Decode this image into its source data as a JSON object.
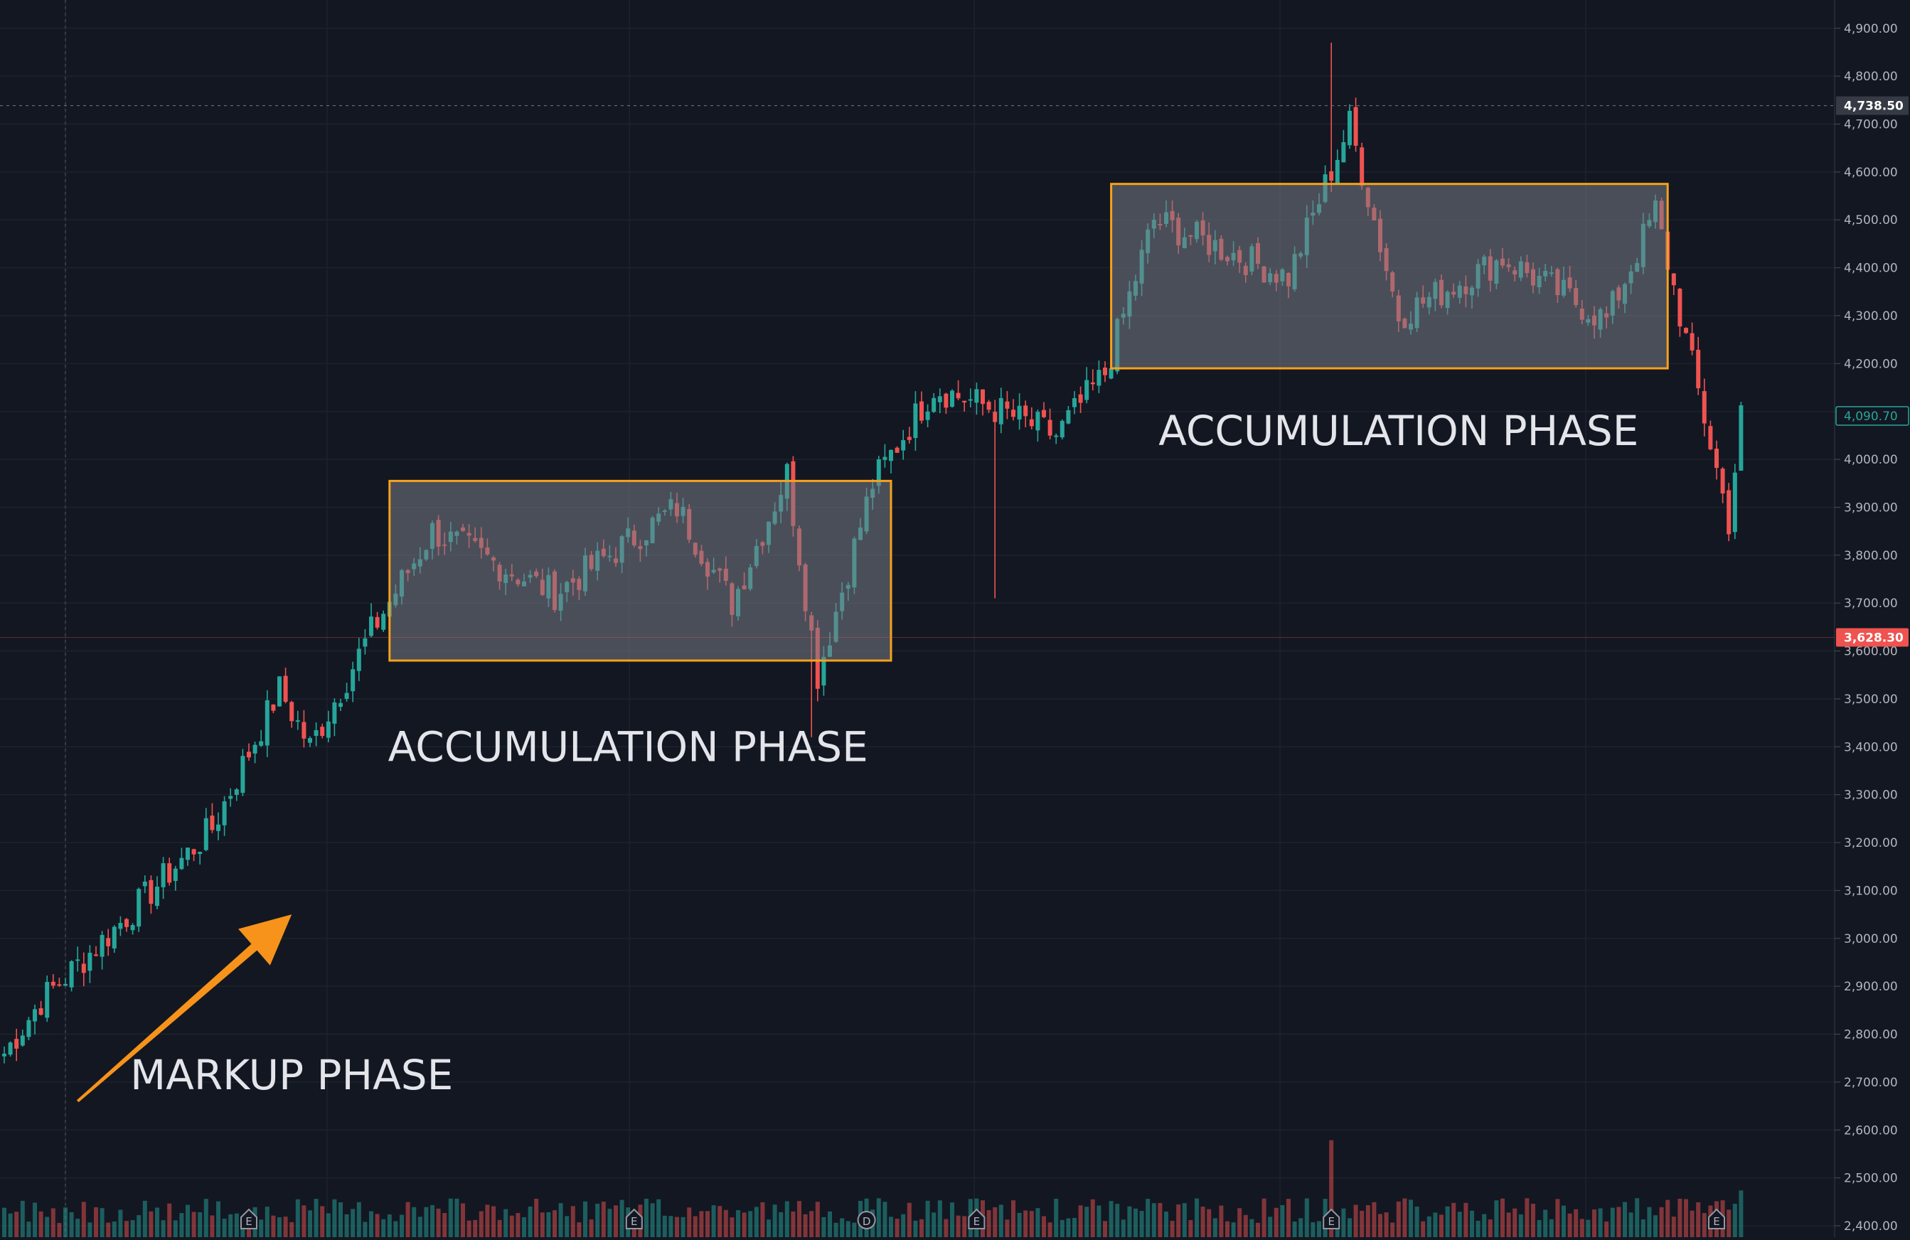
{
  "chart_data": {
    "type": "candlestick",
    "instrument_hint": "",
    "y_axis": {
      "position": "right",
      "range": [
        2400,
        4950
      ],
      "ticks": [
        {
          "value": 2400,
          "label": "2,400.00"
        },
        {
          "value": 2500,
          "label": "2,500.00"
        },
        {
          "value": 2600,
          "label": "2,600.00"
        },
        {
          "value": 2700,
          "label": "2,700.00"
        },
        {
          "value": 2800,
          "label": "2,800.00"
        },
        {
          "value": 2900,
          "label": "2,900.00"
        },
        {
          "value": 3000,
          "label": "3,000.00"
        },
        {
          "value": 3100,
          "label": "3,100.00"
        },
        {
          "value": 3200,
          "label": "3,200.00"
        },
        {
          "value": 3300,
          "label": "3,300.00"
        },
        {
          "value": 3400,
          "label": "3,400.00"
        },
        {
          "value": 3500,
          "label": "3,500.00"
        },
        {
          "value": 3600,
          "label": "3,600.00"
        },
        {
          "value": 3700,
          "label": "3,700.00"
        },
        {
          "value": 3800,
          "label": "3,800.00"
        },
        {
          "value": 3900,
          "label": "3,900.00"
        },
        {
          "value": 4000,
          "label": "4,000.00"
        },
        {
          "value": 4100,
          "label": "4,100.00"
        },
        {
          "value": 4200,
          "label": "4,200.00"
        },
        {
          "value": 4300,
          "label": "4,300.00"
        },
        {
          "value": 4400,
          "label": "4,400.00"
        },
        {
          "value": 4500,
          "label": "4,500.00"
        },
        {
          "value": 4600,
          "label": "4,600.00"
        },
        {
          "value": 4700,
          "label": "4,700.00"
        },
        {
          "value": 4800,
          "label": "4,800.00"
        },
        {
          "value": 4900,
          "label": "4,900.00"
        }
      ]
    },
    "price_tags": [
      {
        "value": 4738.5,
        "label": "4,738.50",
        "style": "crosshair"
      },
      {
        "value": 4090.7,
        "label": "4,090.70",
        "style": "last-outline"
      },
      {
        "value": 3628.3,
        "label": "3,628.30",
        "style": "line-red"
      }
    ],
    "grid": true,
    "legend": "none",
    "colors": {
      "background": "#131722",
      "up": "#26a69a",
      "down": "#ef5350",
      "accent_box": "#f7a21b",
      "box_fill": "#787b86",
      "arrow": "#f7931a",
      "grid": "#1e222d",
      "axis_text": "#b2b5be",
      "annotation_text": "#e3e5ea"
    },
    "key_points": [
      {
        "bar": 0,
        "price": 2760
      },
      {
        "bar": 6,
        "price": 2870
      },
      {
        "bar": 18,
        "price": 3020
      },
      {
        "bar": 34,
        "price": 3230
      },
      {
        "bar": 45,
        "price": 3520
      },
      {
        "bar": 50,
        "price": 3400
      },
      {
        "bar": 60,
        "price": 3640
      },
      {
        "bar": 70,
        "price": 3850
      },
      {
        "bar": 90,
        "price": 3720
      },
      {
        "bar": 110,
        "price": 3900
      },
      {
        "bar": 119,
        "price": 3700
      },
      {
        "bar": 128,
        "price": 3970
      },
      {
        "bar": 133,
        "price": 3550
      },
      {
        "bar": 142,
        "price": 3950
      },
      {
        "bar": 152,
        "price": 4150
      },
      {
        "bar": 163,
        "price": 4100
      },
      {
        "bar": 172,
        "price": 4050
      },
      {
        "bar": 180,
        "price": 4180
      },
      {
        "bar": 188,
        "price": 4500
      },
      {
        "bar": 210,
        "price": 4380
      },
      {
        "bar": 220,
        "price": 4700
      },
      {
        "bar": 228,
        "price": 4300
      },
      {
        "bar": 245,
        "price": 4420
      },
      {
        "bar": 262,
        "price": 4290
      },
      {
        "bar": 270,
        "price": 4520
      },
      {
        "bar": 282,
        "price": 3870
      },
      {
        "bar": 284,
        "price": 4090
      }
    ],
    "spikes": [
      {
        "bar": 132,
        "low": 3420
      },
      {
        "bar": 162,
        "low": 3710
      },
      {
        "bar": 217,
        "high": 4870
      }
    ],
    "event_markers": [
      {
        "bar": 40,
        "label": "E"
      },
      {
        "bar": 103,
        "label": "E"
      },
      {
        "bar": 141,
        "label": "D"
      },
      {
        "bar": 159,
        "label": "E"
      },
      {
        "bar": 217,
        "label": "E"
      },
      {
        "bar": 280,
        "label": "E"
      }
    ],
    "annotations": [
      {
        "type": "box",
        "bar_start": 63,
        "bar_end": 145,
        "price_low": 3580,
        "price_high": 3955
      },
      {
        "type": "box",
        "bar_start": 181,
        "bar_end": 272,
        "price_low": 4190,
        "price_high": 4575
      },
      {
        "type": "arrow",
        "from": {
          "bar": 12,
          "price": 2660
        },
        "to": {
          "bar": 47,
          "price": 3050
        }
      },
      {
        "type": "text",
        "text": "ACCUMULATION PHASE",
        "bar": 102,
        "price": 3370
      },
      {
        "type": "text",
        "text": "ACCUMULATION PHASE",
        "bar": 228,
        "price": 4030
      },
      {
        "type": "text",
        "text": "MARKUP PHASE",
        "bar": 47,
        "price": 2685
      }
    ]
  }
}
